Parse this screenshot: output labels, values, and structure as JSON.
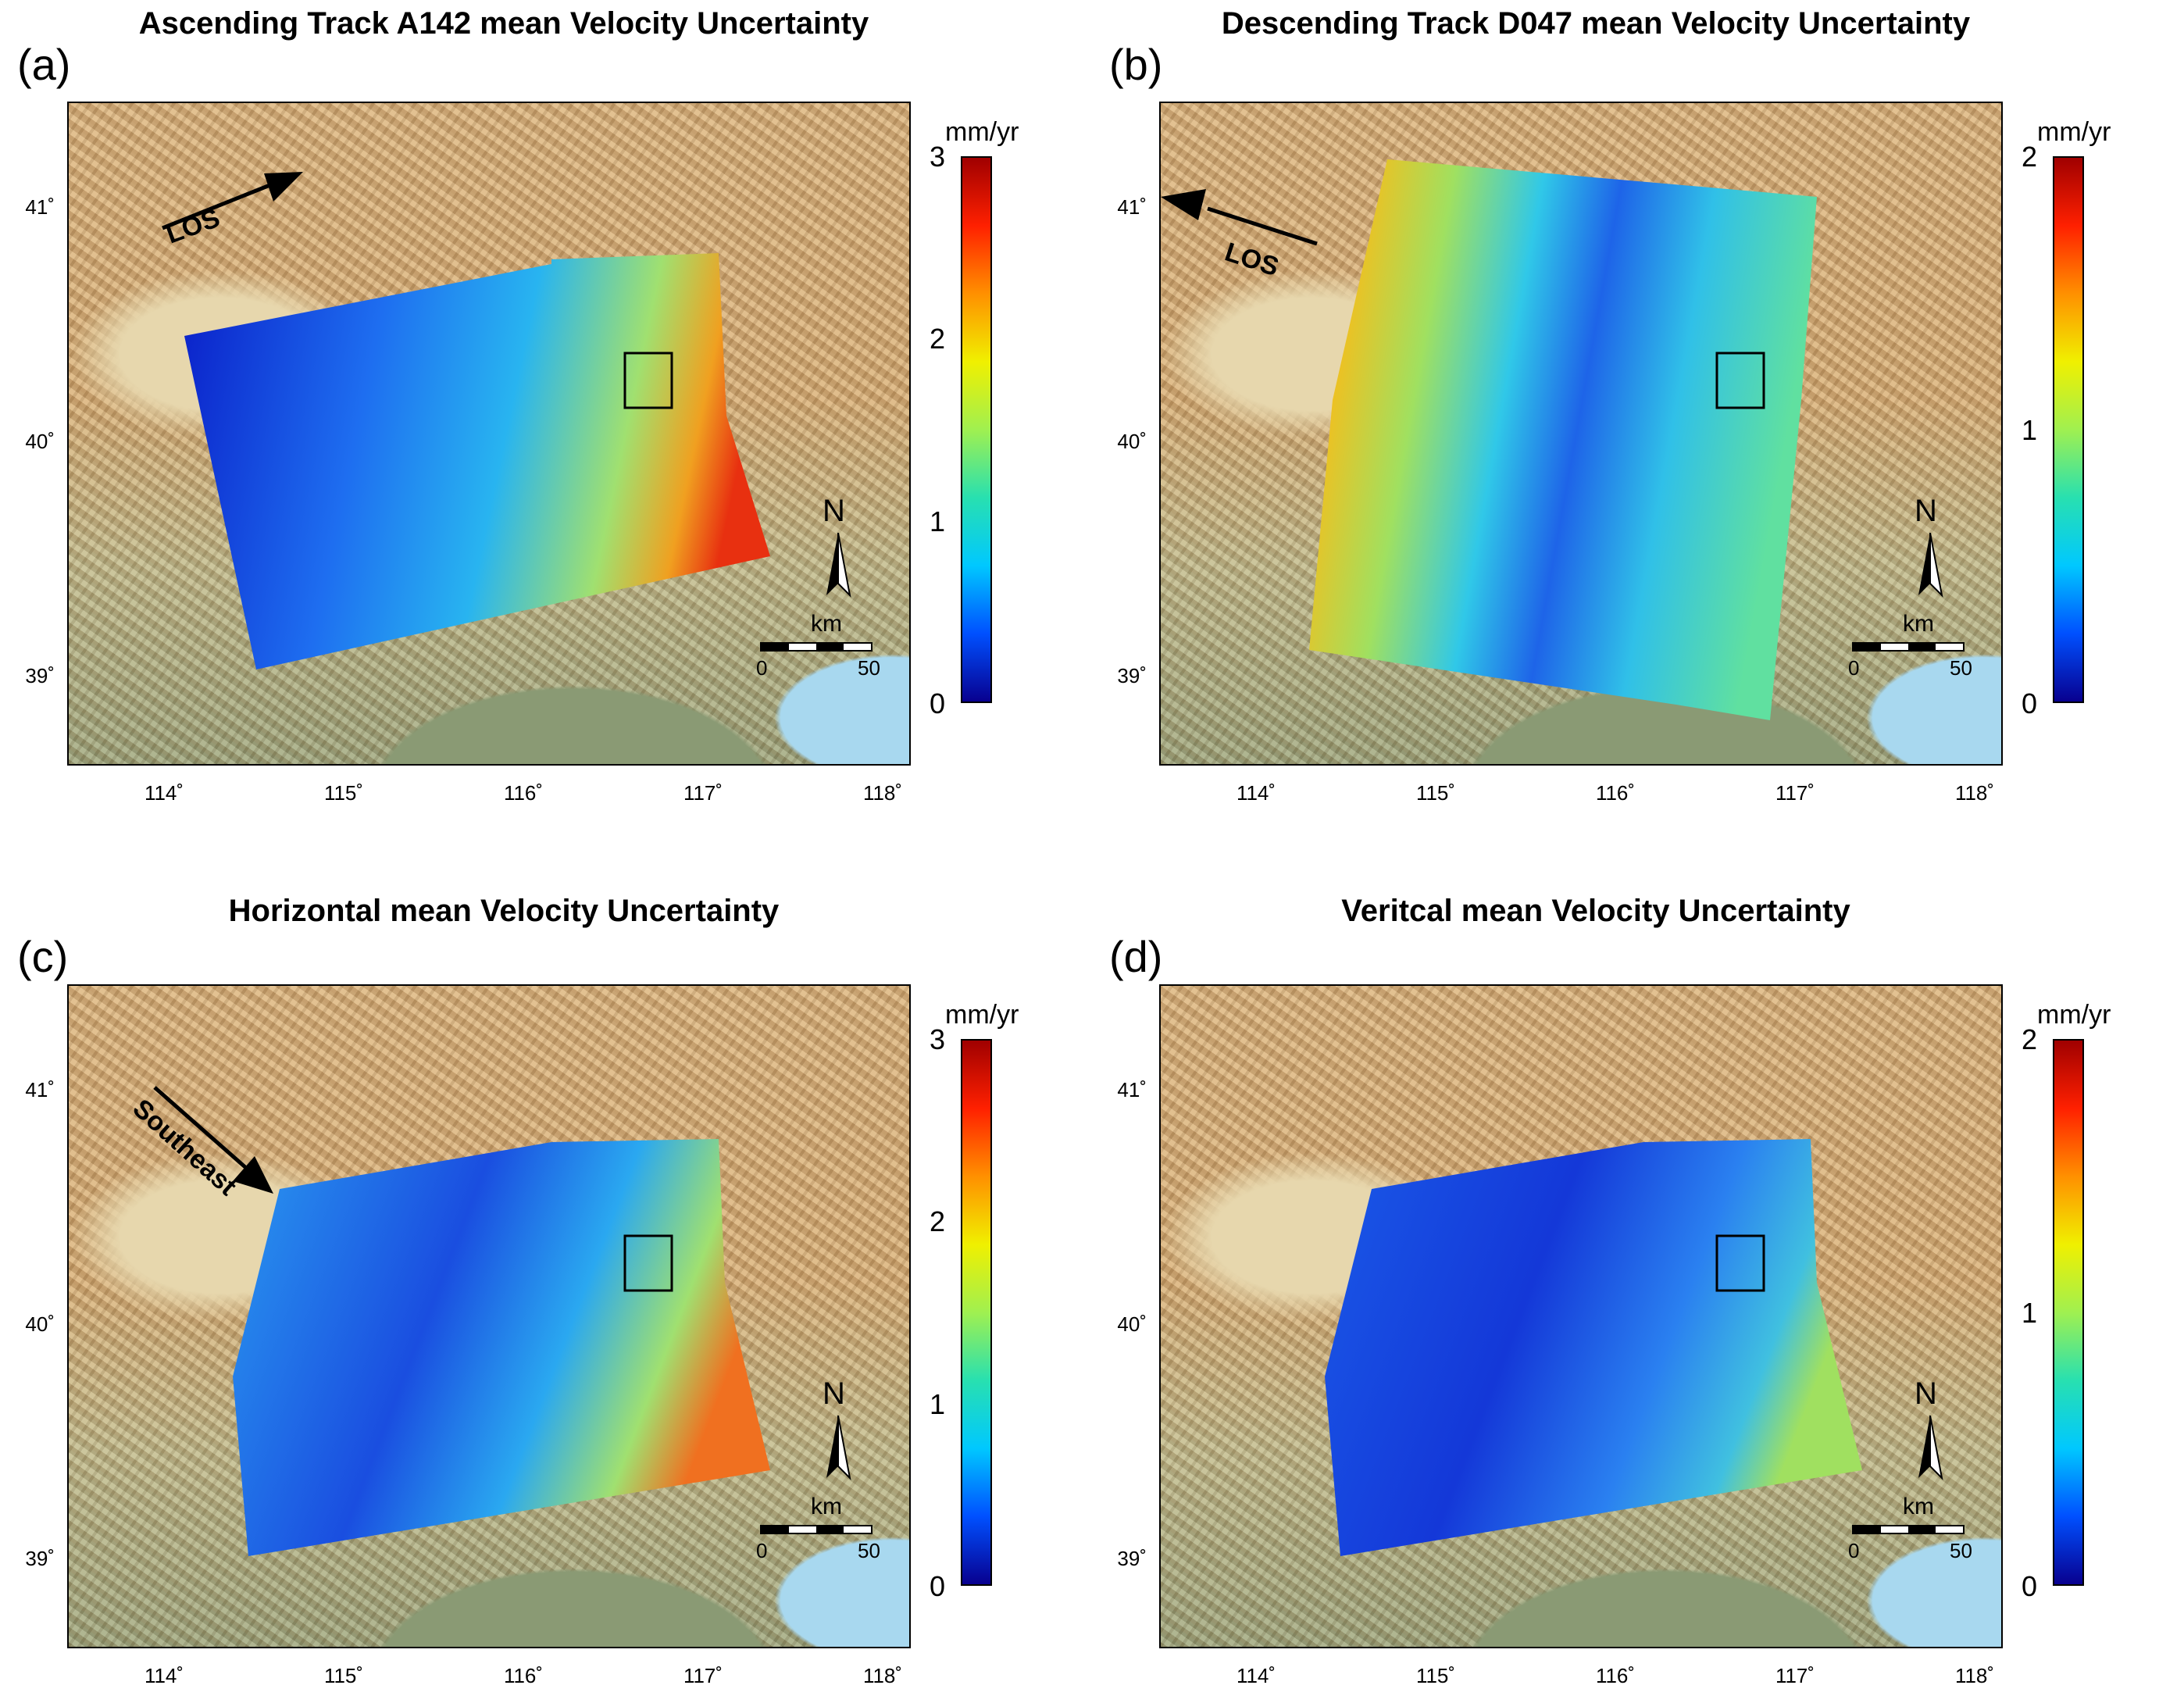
{
  "units": "mm/yr",
  "x_ticks": [
    "114˚",
    "115˚",
    "116˚",
    "117˚",
    "118˚"
  ],
  "y_ticks": [
    "41˚",
    "40˚",
    "39˚"
  ],
  "north_label": "N",
  "scale_unit": "km",
  "scale_ticks": [
    "0",
    "50"
  ],
  "colormap": [
    "#08008f",
    "#0050ff",
    "#00c8ff",
    "#28e0b0",
    "#a0f050",
    "#f0f000",
    "#ff9000",
    "#ff2000",
    "#a00000"
  ],
  "panels": [
    {
      "id": "a",
      "label": "(a)",
      "title": "Ascending Track A142 mean Velocity Uncertainty",
      "colorbar": {
        "min": 0,
        "max": 3,
        "ticks": [
          "0",
          "1",
          "2",
          "3"
        ]
      },
      "direction_label": "LOS"
    },
    {
      "id": "b",
      "label": "(b)",
      "title": "Descending Track D047 mean Velocity Uncertainty",
      "colorbar": {
        "min": 0,
        "max": 2,
        "ticks": [
          "0",
          "1",
          "2"
        ]
      },
      "direction_label": "LOS"
    },
    {
      "id": "c",
      "label": "(c)",
      "title": "Horizontal mean Velocity Uncertainty",
      "colorbar": {
        "min": 0,
        "max": 3,
        "ticks": [
          "0",
          "1",
          "2",
          "3"
        ]
      },
      "direction_label": "Southeast"
    },
    {
      "id": "d",
      "label": "(d)",
      "title": "Veritcal mean Velocity Uncertainty",
      "colorbar": {
        "min": 0,
        "max": 2,
        "ticks": [
          "0",
          "1",
          "2"
        ]
      },
      "direction_label": ""
    }
  ]
}
